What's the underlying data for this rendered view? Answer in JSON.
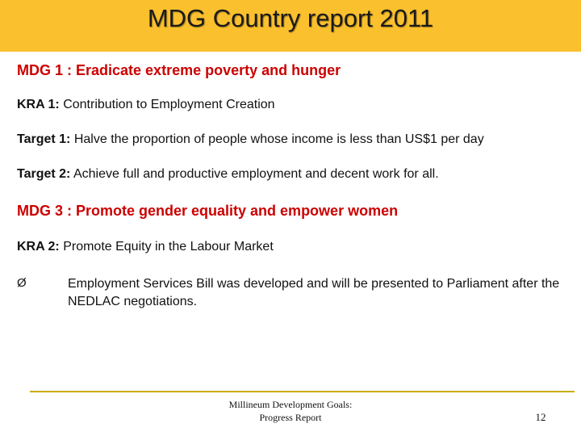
{
  "title": "MDG Country report 2011",
  "sections": [
    {
      "heading": "MDG 1 : Eradicate extreme poverty and hunger",
      "lines": [
        {
          "label": "KRA 1:",
          "text": " Contribution to Employment Creation"
        },
        {
          "label": "Target 1:",
          "text": " Halve the proportion of people whose income is less than US$1 per day"
        },
        {
          "label": "Target 2:",
          "text": " Achieve full and productive employment and decent work for all."
        }
      ]
    },
    {
      "heading": "MDG 3 : Promote gender equality and empower women",
      "lines": [
        {
          "label": "KRA 2:",
          "text": " Promote Equity in the Labour Market"
        }
      ],
      "bullets": [
        {
          "marker": "Ø",
          "text": "Employment Services Bill was developed and will be presented  to Parliament after the NEDLAC negotiations."
        }
      ]
    }
  ],
  "footer": {
    "line1": "Millineum Development Goals:",
    "line2": "Progress Report",
    "page_number": "12"
  },
  "colors": {
    "title_bar": "#fbc02d",
    "heading": "#cc0000",
    "footer_rule": "#c8ad0c"
  }
}
